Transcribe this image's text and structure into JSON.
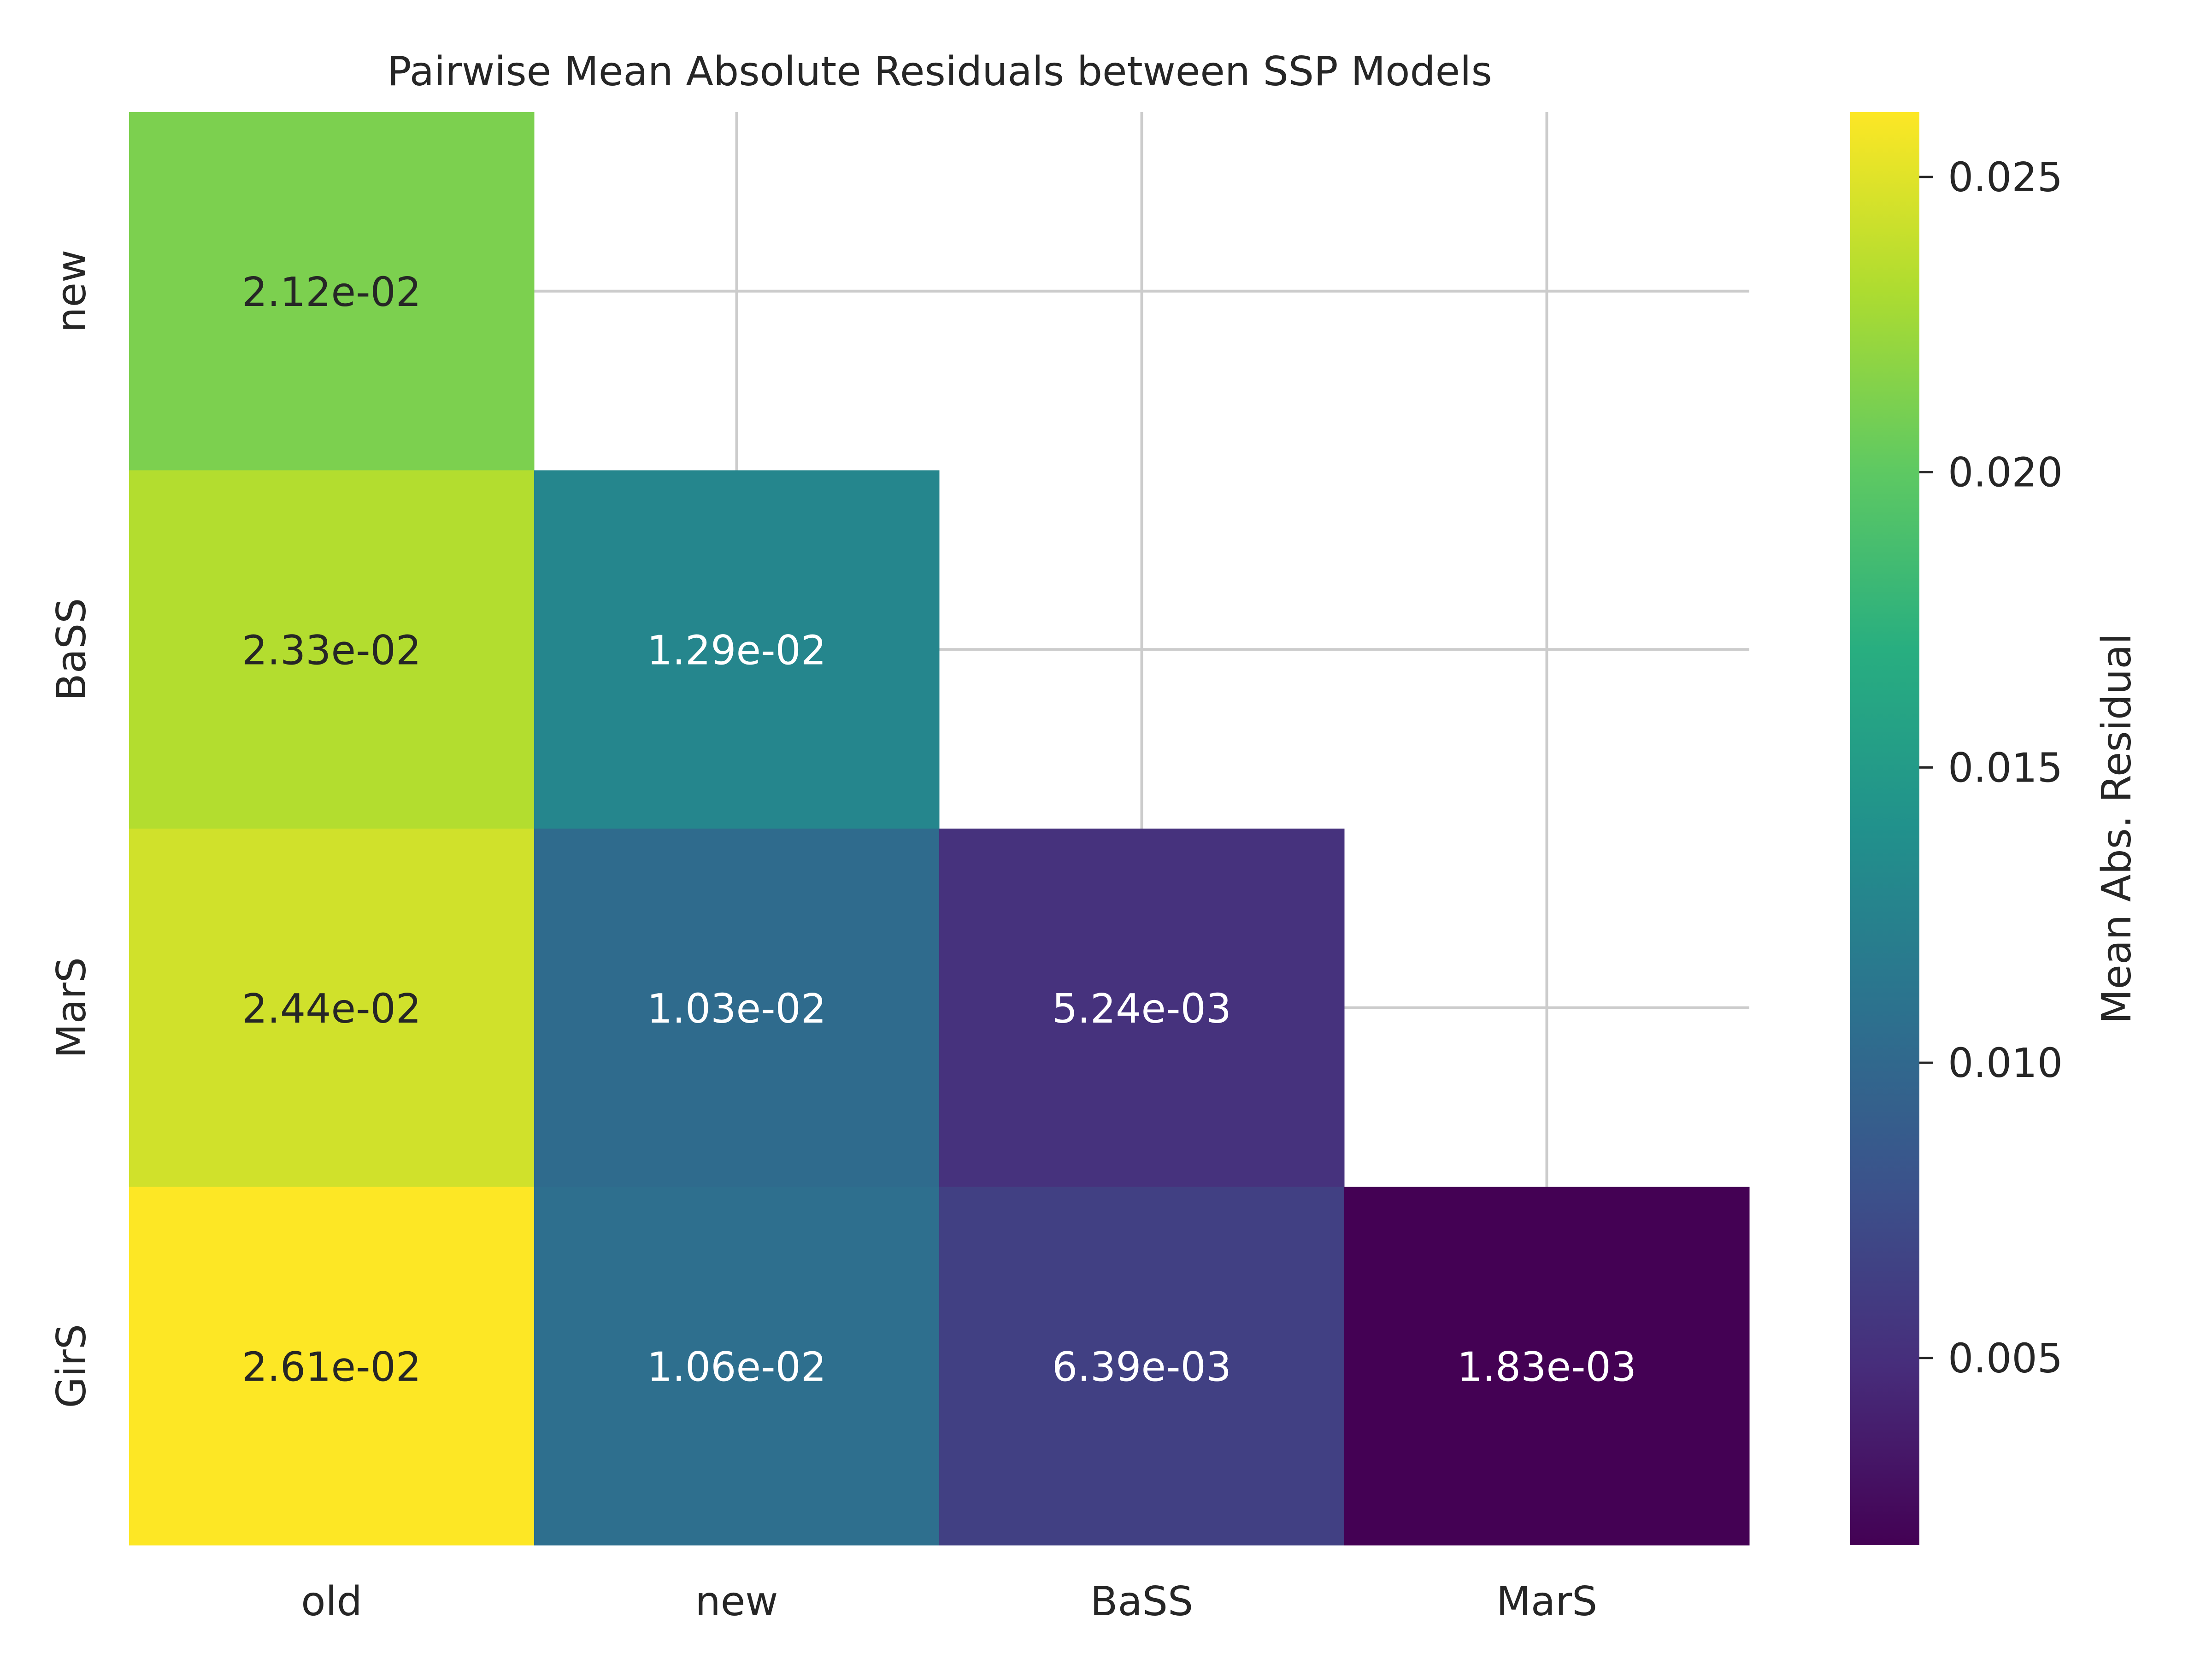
{
  "chart_data": {
    "type": "heatmap",
    "title": "Pairwise Mean Absolute Residuals between SSP Models",
    "x_categories": [
      "old",
      "new",
      "BaSS",
      "MarS"
    ],
    "y_categories": [
      "new",
      "BaSS",
      "MarS",
      "GirS"
    ],
    "values": [
      [
        0.0212,
        null,
        null,
        null
      ],
      [
        0.0233,
        0.0129,
        null,
        null
      ],
      [
        0.0244,
        0.0103,
        0.00524,
        null
      ],
      [
        0.0261,
        0.0106,
        0.00639,
        0.00183
      ]
    ],
    "labels": [
      [
        "2.12e-02",
        "",
        "",
        ""
      ],
      [
        "2.33e-02",
        "1.29e-02",
        "",
        ""
      ],
      [
        "2.44e-02",
        "1.03e-02",
        "5.24e-03",
        ""
      ],
      [
        "2.61e-02",
        "1.06e-02",
        "6.39e-03",
        "1.83e-03"
      ]
    ],
    "colormap": "viridis",
    "vmin": 0.00183,
    "vmax": 0.0261,
    "grid": true,
    "colorbar": {
      "label": "Mean Abs. Residual",
      "ticks": [
        0.005,
        0.01,
        0.015,
        0.02,
        0.025
      ],
      "tick_labels": [
        "0.005",
        "0.010",
        "0.015",
        "0.020",
        "0.025"
      ]
    }
  }
}
